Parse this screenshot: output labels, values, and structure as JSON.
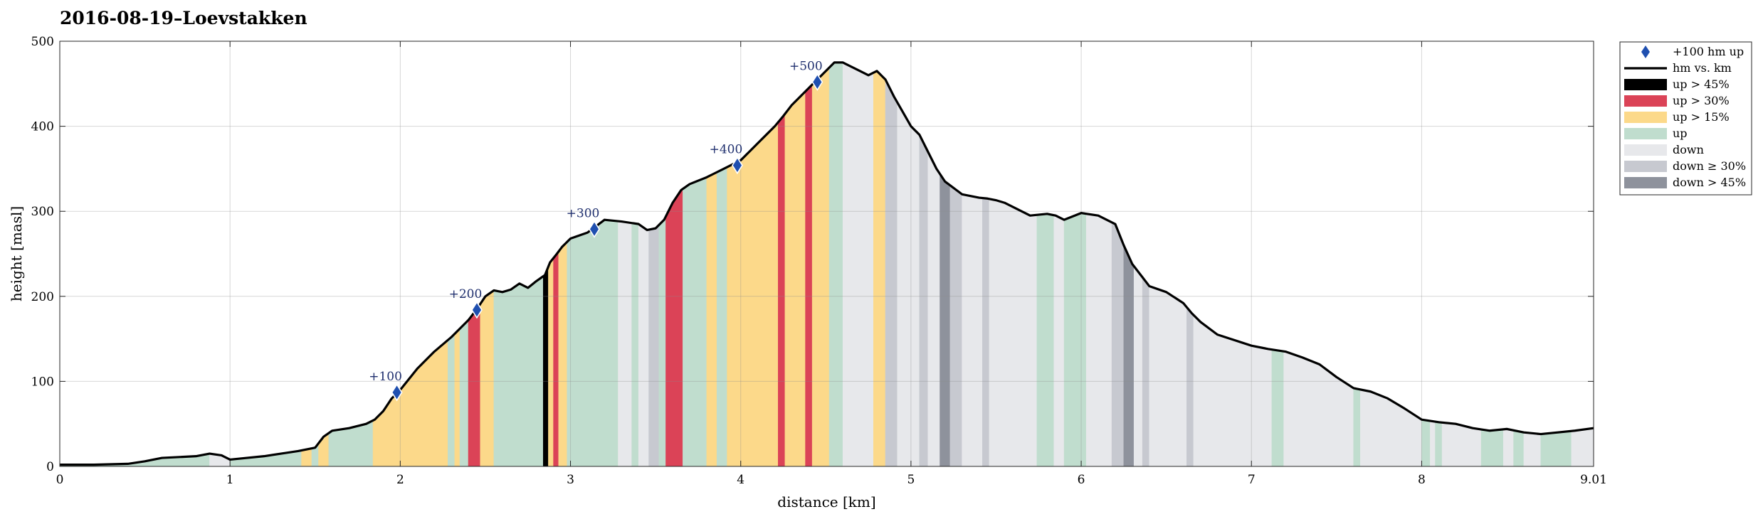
{
  "chart_data": {
    "type": "area",
    "title": "2016-08-19–Loevstakken",
    "xlabel": "distance [km]",
    "ylabel": "height [masl]",
    "xlim": [
      0,
      9.01
    ],
    "ylim": [
      0,
      500
    ],
    "xticks": [
      "0",
      "1",
      "2",
      "3",
      "4",
      "5",
      "6",
      "7",
      "8",
      "9.01"
    ],
    "yticks": [
      "0",
      "100",
      "200",
      "300",
      "400",
      "500"
    ],
    "grid": true,
    "legend_position": "top-right",
    "profile": {
      "name": "hm vs. km",
      "color": "#000000",
      "x": [
        0,
        0.2,
        0.4,
        0.5,
        0.6,
        0.8,
        0.88,
        0.95,
        1.0,
        1.2,
        1.4,
        1.5,
        1.55,
        1.6,
        1.7,
        1.8,
        1.85,
        1.9,
        1.95,
        2.0,
        2.1,
        2.2,
        2.3,
        2.35,
        2.4,
        2.45,
        2.5,
        2.55,
        2.6,
        2.65,
        2.7,
        2.75,
        2.8,
        2.85,
        2.88,
        2.92,
        2.95,
        3.0,
        3.1,
        3.2,
        3.3,
        3.4,
        3.45,
        3.5,
        3.55,
        3.6,
        3.65,
        3.7,
        3.8,
        3.85,
        3.9,
        3.95,
        4.0,
        4.05,
        4.1,
        4.15,
        4.2,
        4.25,
        4.3,
        4.4,
        4.45,
        4.5,
        4.55,
        4.6,
        4.7,
        4.75,
        4.8,
        4.85,
        4.9,
        5.0,
        5.05,
        5.1,
        5.15,
        5.2,
        5.3,
        5.35,
        5.4,
        5.45,
        5.5,
        5.55,
        5.6,
        5.7,
        5.8,
        5.85,
        5.9,
        6.0,
        6.1,
        6.2,
        6.25,
        6.3,
        6.35,
        6.4,
        6.5,
        6.6,
        6.65,
        6.7,
        6.8,
        7.0,
        7.1,
        7.2,
        7.3,
        7.4,
        7.5,
        7.6,
        7.7,
        7.8,
        7.9,
        8.0,
        8.1,
        8.2,
        8.3,
        8.4,
        8.5,
        8.6,
        8.7,
        8.8,
        8.9,
        9.01
      ],
      "y": [
        2,
        2,
        3,
        6,
        10,
        12,
        15,
        13,
        8,
        12,
        18,
        22,
        35,
        42,
        45,
        50,
        55,
        65,
        80,
        90,
        115,
        135,
        152,
        162,
        172,
        185,
        200,
        207,
        205,
        208,
        215,
        210,
        218,
        225,
        240,
        250,
        258,
        268,
        275,
        290,
        288,
        285,
        278,
        280,
        290,
        310,
        325,
        332,
        340,
        345,
        350,
        355,
        360,
        370,
        380,
        390,
        400,
        412,
        425,
        445,
        455,
        465,
        475,
        475,
        465,
        460,
        465,
        455,
        435,
        400,
        390,
        370,
        350,
        335,
        320,
        318,
        316,
        315,
        313,
        310,
        305,
        295,
        297,
        295,
        290,
        298,
        295,
        285,
        260,
        238,
        225,
        212,
        205,
        192,
        180,
        170,
        155,
        142,
        138,
        135,
        128,
        120,
        105,
        92,
        88,
        80,
        68,
        55,
        52,
        50,
        45,
        42,
        44,
        40,
        38,
        40,
        42,
        45
      ]
    },
    "markers": {
      "name": "+100 hm up",
      "color": "#1f4fb0",
      "x": [
        1.98,
        2.45,
        3.14,
        3.98,
        4.45
      ],
      "y": [
        87,
        184,
        279,
        354,
        452
      ],
      "labels": [
        "+100",
        "+200",
        "+300",
        "+400",
        "+500"
      ]
    },
    "categories": [
      {
        "key": "up45",
        "name": "up > 45%",
        "color": "#000000"
      },
      {
        "key": "up30",
        "name": "up > 30%",
        "color": "#db4357"
      },
      {
        "key": "up15",
        "name": "up > 15%",
        "color": "#fcd98a"
      },
      {
        "key": "up",
        "name": "up",
        "color": "#c0ddce"
      },
      {
        "key": "down",
        "name": "down",
        "color": "#e7e8eb"
      },
      {
        "key": "down30",
        "name": "down ≥ 30%",
        "color": "#c7c9d0"
      },
      {
        "key": "down45",
        "name": "down > 45%",
        "color": "#8e929c"
      }
    ],
    "segments": [
      [
        0.0,
        0.88,
        "up"
      ],
      [
        0.88,
        1.0,
        "down"
      ],
      [
        1.0,
        1.42,
        "up"
      ],
      [
        1.42,
        1.48,
        "up15"
      ],
      [
        1.48,
        1.52,
        "up"
      ],
      [
        1.52,
        1.58,
        "up15"
      ],
      [
        1.58,
        1.84,
        "up"
      ],
      [
        1.84,
        2.28,
        "up15"
      ],
      [
        2.28,
        2.32,
        "up"
      ],
      [
        2.32,
        2.35,
        "up15"
      ],
      [
        2.35,
        2.4,
        "up"
      ],
      [
        2.4,
        2.47,
        "up30"
      ],
      [
        2.47,
        2.55,
        "up15"
      ],
      [
        2.55,
        2.6,
        "up"
      ],
      [
        2.6,
        2.7,
        "up"
      ],
      [
        2.7,
        2.78,
        "up"
      ],
      [
        2.78,
        2.84,
        "up"
      ],
      [
        2.84,
        2.87,
        "up45"
      ],
      [
        2.87,
        2.9,
        "up15"
      ],
      [
        2.9,
        2.93,
        "up30"
      ],
      [
        2.93,
        2.98,
        "up15"
      ],
      [
        2.98,
        3.28,
        "up"
      ],
      [
        3.28,
        3.36,
        "down"
      ],
      [
        3.36,
        3.4,
        "up"
      ],
      [
        3.4,
        3.46,
        "down"
      ],
      [
        3.46,
        3.52,
        "down30"
      ],
      [
        3.52,
        3.56,
        "up"
      ],
      [
        3.56,
        3.66,
        "up30"
      ],
      [
        3.66,
        3.8,
        "up"
      ],
      [
        3.8,
        3.86,
        "up15"
      ],
      [
        3.86,
        3.92,
        "up"
      ],
      [
        3.92,
        4.22,
        "up15"
      ],
      [
        4.22,
        4.26,
        "up30"
      ],
      [
        4.26,
        4.38,
        "up15"
      ],
      [
        4.38,
        4.42,
        "up30"
      ],
      [
        4.42,
        4.52,
        "up15"
      ],
      [
        4.52,
        4.6,
        "up"
      ],
      [
        4.6,
        4.78,
        "down"
      ],
      [
        4.78,
        4.85,
        "up15"
      ],
      [
        4.85,
        4.92,
        "down30"
      ],
      [
        4.92,
        5.05,
        "down"
      ],
      [
        5.05,
        5.1,
        "down30"
      ],
      [
        5.1,
        5.17,
        "down"
      ],
      [
        5.17,
        5.23,
        "down45"
      ],
      [
        5.23,
        5.3,
        "down30"
      ],
      [
        5.3,
        5.42,
        "down"
      ],
      [
        5.42,
        5.46,
        "down30"
      ],
      [
        5.46,
        5.74,
        "down"
      ],
      [
        5.74,
        5.84,
        "up"
      ],
      [
        5.84,
        5.9,
        "down"
      ],
      [
        5.9,
        6.03,
        "up"
      ],
      [
        6.03,
        6.18,
        "down"
      ],
      [
        6.18,
        6.25,
        "down30"
      ],
      [
        6.25,
        6.31,
        "down45"
      ],
      [
        6.31,
        6.36,
        "down"
      ],
      [
        6.36,
        6.4,
        "down30"
      ],
      [
        6.4,
        6.62,
        "down"
      ],
      [
        6.62,
        6.66,
        "down30"
      ],
      [
        6.66,
        7.12,
        "down"
      ],
      [
        7.12,
        7.19,
        "up"
      ],
      [
        7.19,
        7.6,
        "down"
      ],
      [
        7.6,
        7.64,
        "up"
      ],
      [
        7.64,
        8.0,
        "down"
      ],
      [
        8.0,
        8.05,
        "up"
      ],
      [
        8.05,
        8.08,
        "down"
      ],
      [
        8.08,
        8.12,
        "up"
      ],
      [
        8.12,
        8.35,
        "down"
      ],
      [
        8.35,
        8.48,
        "up"
      ],
      [
        8.48,
        8.54,
        "down"
      ],
      [
        8.54,
        8.6,
        "up"
      ],
      [
        8.6,
        8.7,
        "down"
      ],
      [
        8.7,
        8.88,
        "up"
      ],
      [
        8.88,
        9.01,
        "down"
      ]
    ]
  }
}
